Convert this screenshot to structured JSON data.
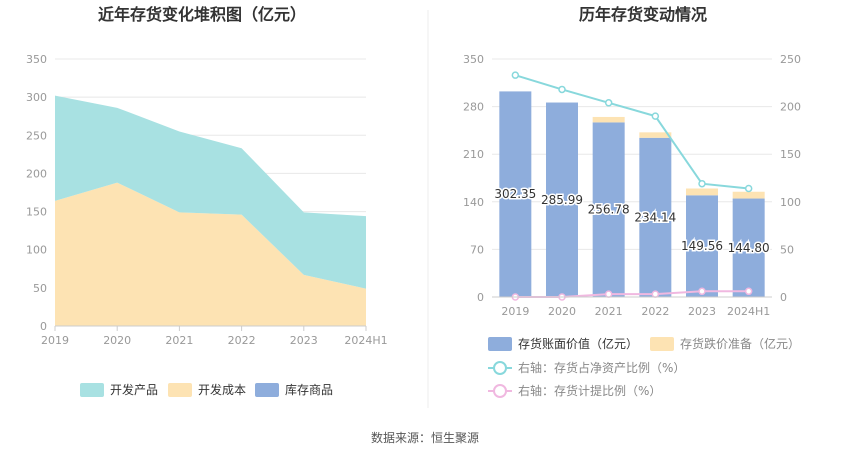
{
  "colors": {
    "dev_product": "#a8e1e2",
    "dev_cost": "#fde3b3",
    "stock_goods": "#8eaddc",
    "book_value": "#8eaddc",
    "impairment": "#fde3b3",
    "ratio_net_assets": "#88d8dc",
    "ratio_provision": "#f0b8e0",
    "divider": "#eeeeee"
  },
  "chart_data": [
    {
      "type": "area",
      "title": "近年存货变化堆积图（亿元）",
      "categories": [
        "2019",
        "2020",
        "2021",
        "2022",
        "2023",
        "2024H1"
      ],
      "y_ticks": [
        "0",
        "50",
        "100",
        "150",
        "200",
        "250",
        "300",
        "350"
      ],
      "ylim": [
        0,
        350
      ],
      "grid": true,
      "legend_position": "bottom",
      "series": [
        {
          "name": "开发产品",
          "values": [
            138,
            98,
            106,
            87,
            82,
            95
          ]
        },
        {
          "name": "开发成本",
          "values": [
            164,
            188,
            149,
            146,
            67,
            49
          ]
        },
        {
          "name": "库存商品",
          "values": [
            0,
            0,
            0,
            0,
            0,
            0
          ]
        }
      ]
    },
    {
      "type": "bar",
      "title": "历年存货变动情况",
      "categories": [
        "2019",
        "2020",
        "2021",
        "2022",
        "2023",
        "2024H1"
      ],
      "y_left_ticks": [
        "0",
        "70",
        "140",
        "210",
        "280",
        "350"
      ],
      "y_right_ticks": [
        "0",
        "50",
        "100",
        "150",
        "200",
        "250"
      ],
      "ylim_left": [
        0,
        350
      ],
      "ylim_right": [
        0,
        250
      ],
      "grid": true,
      "legend_position": "bottom",
      "series": [
        {
          "name": "存货账面价值（亿元）",
          "values": [
            302.35,
            285.99,
            256.78,
            234.14,
            149.56,
            144.8
          ],
          "labels": [
            "302.35",
            "285.99",
            "256.78",
            "234.14",
            "149.56",
            "144.80"
          ],
          "axis": "left"
        },
        {
          "name": "存货跌价准备（亿元）",
          "values": [
            0,
            0,
            8,
            8,
            10,
            10
          ],
          "axis": "left"
        },
        {
          "name": "右轴：存货占净资产比例（%）",
          "values": [
            233,
            218,
            204,
            190,
            119,
            114
          ],
          "axis": "right"
        },
        {
          "name": "右轴：存货计提比例（%）",
          "values": [
            0,
            0,
            3,
            3,
            6,
            6
          ],
          "axis": "right"
        }
      ]
    }
  ],
  "source": "数据来源：恒生聚源"
}
